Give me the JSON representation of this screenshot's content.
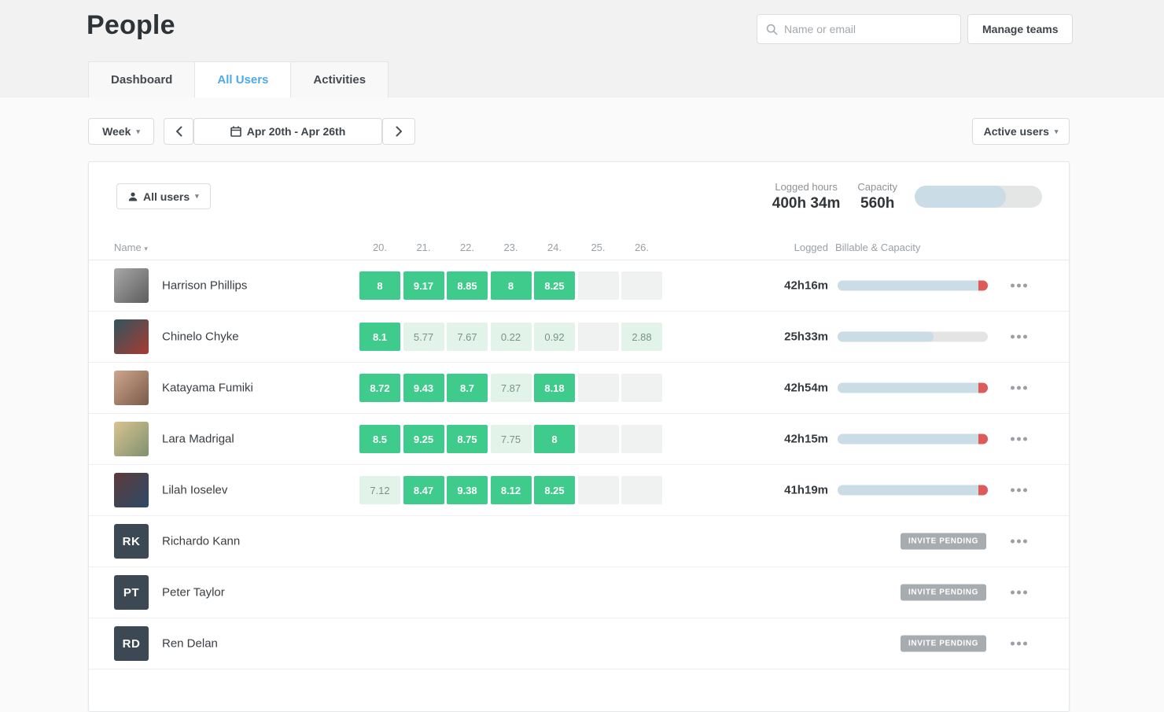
{
  "page_title": "People",
  "search": {
    "placeholder": "Name or email"
  },
  "manage_teams_label": "Manage teams",
  "tabs": [
    {
      "label": "Dashboard"
    },
    {
      "label": "All Users"
    },
    {
      "label": "Activities"
    }
  ],
  "active_tab": "All Users",
  "toolbar": {
    "period_label": "Week",
    "date_range": "Apr 20th - Apr 26th",
    "users_filter_label": "Active users"
  },
  "summary": {
    "all_users_label": "All users",
    "logged_hours_label": "Logged hours",
    "logged_hours_value": "400h 34m",
    "capacity_label": "Capacity",
    "capacity_value": "560h",
    "capacity_bar_pct": 71.5
  },
  "colors": {
    "accent_blue": "#4caae8",
    "green_full": "#3ecb8c",
    "green_light_bg": "#e2f4ea",
    "empty_cell_bg": "#f0f1f1",
    "bar_fill": "#cadce6",
    "bar_track": "#e4e4e4",
    "over_capacity_red": "#dd5c5b",
    "badge_bg": "#a7acb1"
  },
  "table": {
    "name_header": "Name",
    "day_headers": [
      "20.",
      "21.",
      "22.",
      "23.",
      "24.",
      "25.",
      "26."
    ],
    "logged_header": "Logged",
    "billable_header": "Billable & Capacity",
    "invite_badge_label": "INVITE PENDING",
    "rows": [
      {
        "name": "Harrison Phillips",
        "avatar": {
          "type": "photo",
          "colors": [
            "#a8a8a8",
            "#5d5d5d"
          ]
        },
        "cells": [
          {
            "value": "8",
            "type": "full"
          },
          {
            "value": "9.17",
            "type": "full"
          },
          {
            "value": "8.85",
            "type": "full"
          },
          {
            "value": "8",
            "type": "full"
          },
          {
            "value": "8.25",
            "type": "full"
          },
          {
            "value": "",
            "type": "empty"
          },
          {
            "value": "",
            "type": "empty"
          }
        ],
        "logged": "42h16m",
        "bar_pct": 100,
        "over_capacity": true
      },
      {
        "name": "Chinelo Chyke",
        "avatar": {
          "type": "photo",
          "colors": [
            "#2f555f",
            "#a83b32"
          ]
        },
        "cells": [
          {
            "value": "8.1",
            "type": "full"
          },
          {
            "value": "5.77",
            "type": "light"
          },
          {
            "value": "7.67",
            "type": "light"
          },
          {
            "value": "0.22",
            "type": "light"
          },
          {
            "value": "0.92",
            "type": "light"
          },
          {
            "value": "",
            "type": "empty"
          },
          {
            "value": "2.88",
            "type": "light"
          }
        ],
        "logged": "25h33m",
        "bar_pct": 64,
        "over_capacity": false
      },
      {
        "name": "Katayama Fumiki",
        "avatar": {
          "type": "photo",
          "colors": [
            "#cfa68e",
            "#7a5a48"
          ]
        },
        "cells": [
          {
            "value": "8.72",
            "type": "full"
          },
          {
            "value": "9.43",
            "type": "full"
          },
          {
            "value": "8.7",
            "type": "full"
          },
          {
            "value": "7.87",
            "type": "light"
          },
          {
            "value": "8.18",
            "type": "full"
          },
          {
            "value": "",
            "type": "empty"
          },
          {
            "value": "",
            "type": "empty"
          }
        ],
        "logged": "42h54m",
        "bar_pct": 100,
        "over_capacity": true
      },
      {
        "name": "Lara Madrigal",
        "avatar": {
          "type": "photo",
          "colors": [
            "#d9c491",
            "#7f906f"
          ]
        },
        "cells": [
          {
            "value": "8.5",
            "type": "full"
          },
          {
            "value": "9.25",
            "type": "full"
          },
          {
            "value": "8.75",
            "type": "full"
          },
          {
            "value": "7.75",
            "type": "light"
          },
          {
            "value": "8",
            "type": "full"
          },
          {
            "value": "",
            "type": "empty"
          },
          {
            "value": "",
            "type": "empty"
          }
        ],
        "logged": "42h15m",
        "bar_pct": 100,
        "over_capacity": true
      },
      {
        "name": "Lilah Ioselev",
        "avatar": {
          "type": "photo",
          "colors": [
            "#5c3b3d",
            "#2e4a66"
          ]
        },
        "cells": [
          {
            "value": "7.12",
            "type": "light"
          },
          {
            "value": "8.47",
            "type": "full"
          },
          {
            "value": "9.38",
            "type": "full"
          },
          {
            "value": "8.12",
            "type": "full"
          },
          {
            "value": "8.25",
            "type": "full"
          },
          {
            "value": "",
            "type": "empty"
          },
          {
            "value": "",
            "type": "empty"
          }
        ],
        "logged": "41h19m",
        "bar_pct": 100,
        "over_capacity": true
      },
      {
        "name": "Richardo Kann",
        "avatar": {
          "type": "initials",
          "initials": "RK"
        },
        "invite_pending": true
      },
      {
        "name": "Peter Taylor",
        "avatar": {
          "type": "initials",
          "initials": "PT"
        },
        "invite_pending": true
      },
      {
        "name": "Ren Delan",
        "avatar": {
          "type": "initials",
          "initials": "RD"
        },
        "invite_pending": true
      }
    ]
  }
}
